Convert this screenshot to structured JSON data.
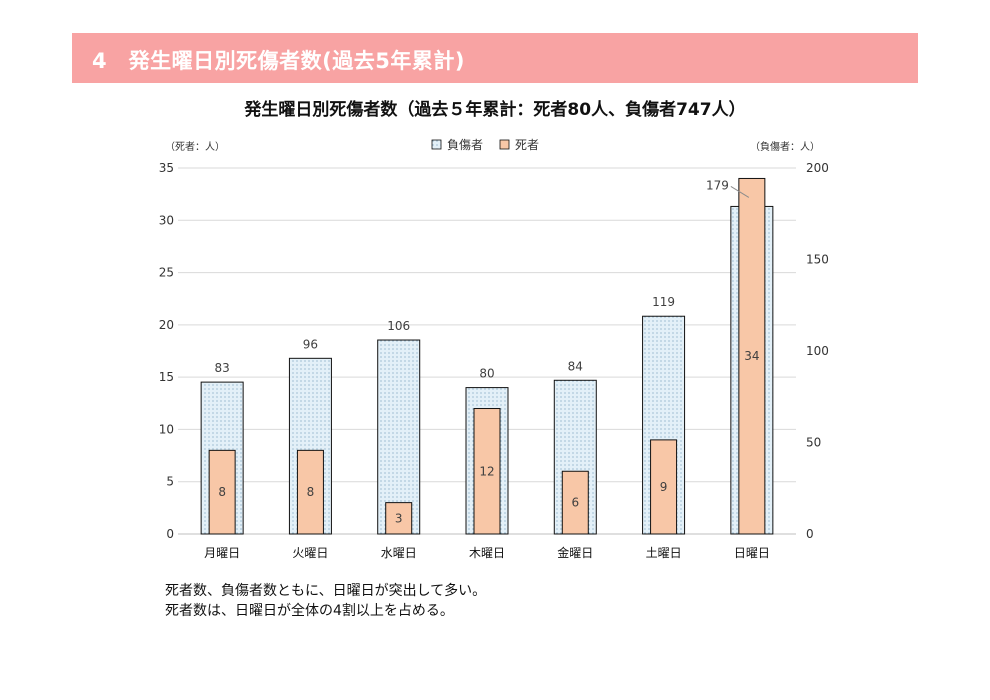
{
  "page": {
    "section_title": "4　発生曜日別死傷者数(過去5年累計)",
    "notes": [
      "死者数、負傷者数ともに、日曜日が突出して多い。",
      "死者数は、日曜日が全体の4割以上を占める。"
    ],
    "colors": {
      "banner": "#f8a3a3",
      "injured_fill": "#e3f0f8",
      "injured_dot": "#7fa7c1",
      "deaths_fill": "#f8c7a7",
      "bar_outline": "#111111",
      "grid": "#d9d9d9"
    }
  },
  "chart_data": {
    "type": "bar",
    "title": "発生曜日別死傷者数（過去５年累計：死者80人、負傷者747人）",
    "categories": [
      "月曜日",
      "火曜日",
      "水曜日",
      "木曜日",
      "金曜日",
      "土曜日",
      "日曜日"
    ],
    "series": [
      {
        "name": "負傷者",
        "axis": "right",
        "values": [
          83,
          96,
          106,
          80,
          84,
          119,
          179
        ],
        "data_labels": [
          "83",
          "96",
          "106",
          "80",
          "84",
          "119",
          "179"
        ]
      },
      {
        "name": "死者",
        "axis": "left",
        "values": [
          8,
          8,
          3,
          12,
          6,
          9,
          34
        ],
        "data_labels": [
          "8",
          "8",
          "3",
          "12",
          "6",
          "9",
          "34"
        ]
      }
    ],
    "left_axis": {
      "label": "（死者：人）",
      "range": [
        0,
        35
      ],
      "ticks": [
        0,
        5,
        10,
        15,
        20,
        25,
        30,
        35
      ]
    },
    "right_axis": {
      "label": "（負傷者：人）",
      "range": [
        0,
        200
      ],
      "ticks": [
        0,
        50,
        100,
        150,
        200
      ]
    },
    "legend": {
      "position": "top",
      "entries": [
        "負傷者",
        "死者"
      ]
    },
    "grid": true
  }
}
